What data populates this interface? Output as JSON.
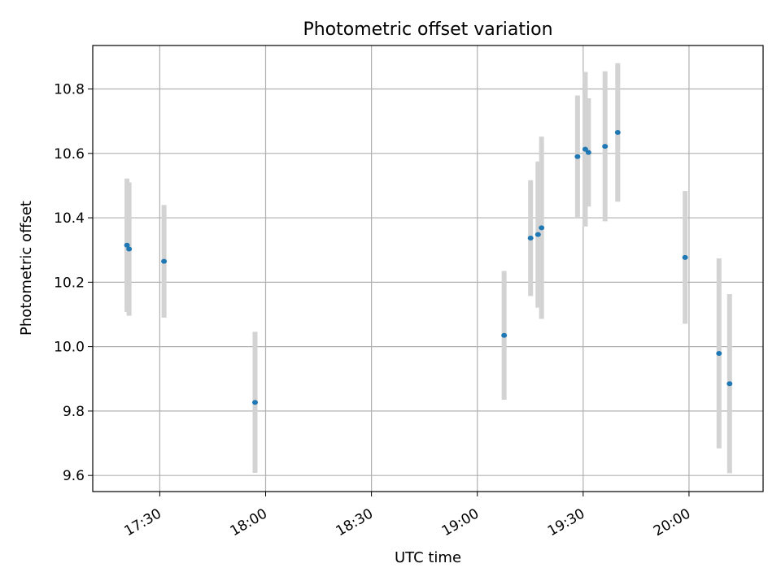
{
  "chart_data": {
    "type": "scatter",
    "title": "Photometric offset variation",
    "xlabel": "UTC time",
    "ylabel": "Photometric offset",
    "x_axis": "time",
    "x_ticks": [
      "17:30",
      "18:00",
      "18:30",
      "19:00",
      "19:30",
      "20:00"
    ],
    "y_ticks": [
      "9.6",
      "9.8",
      "10.0",
      "10.2",
      "10.4",
      "10.6",
      "10.8"
    ],
    "xlim": [
      "17:11",
      "20:21"
    ],
    "ylim": [
      9.55,
      10.935
    ],
    "grid": true,
    "colors": {
      "point": "#1f77b4",
      "errorbar": "#d3d3d3",
      "grid": "#b0b0b0"
    },
    "points": [
      {
        "x": "17:20.7",
        "y": 10.315,
        "err": 0.207
      },
      {
        "x": "17:21.3",
        "y": 10.303,
        "err": 0.207
      },
      {
        "x": "17:31.2",
        "y": 10.265,
        "err": 0.175
      },
      {
        "x": "17:57.0",
        "y": 9.827,
        "err": 0.219
      },
      {
        "x": "19:07.6",
        "y": 10.035,
        "err": 0.2
      },
      {
        "x": "19:15.1",
        "y": 10.337,
        "err": 0.18
      },
      {
        "x": "19:17.2",
        "y": 10.348,
        "err": 0.227
      },
      {
        "x": "19:18.2",
        "y": 10.369,
        "err": 0.283
      },
      {
        "x": "19:28.4",
        "y": 10.59,
        "err": 0.19
      },
      {
        "x": "19:30.6",
        "y": 10.613,
        "err": 0.24
      },
      {
        "x": "19:31.5",
        "y": 10.603,
        "err": 0.168
      },
      {
        "x": "19:36.2",
        "y": 10.622,
        "err": 0.233
      },
      {
        "x": "19:39.8",
        "y": 10.665,
        "err": 0.215
      },
      {
        "x": "19:58.9",
        "y": 10.277,
        "err": 0.206
      },
      {
        "x": "20:08.5",
        "y": 9.979,
        "err": 0.295
      },
      {
        "x": "20:11.5",
        "y": 9.885,
        "err": 0.278
      }
    ]
  }
}
